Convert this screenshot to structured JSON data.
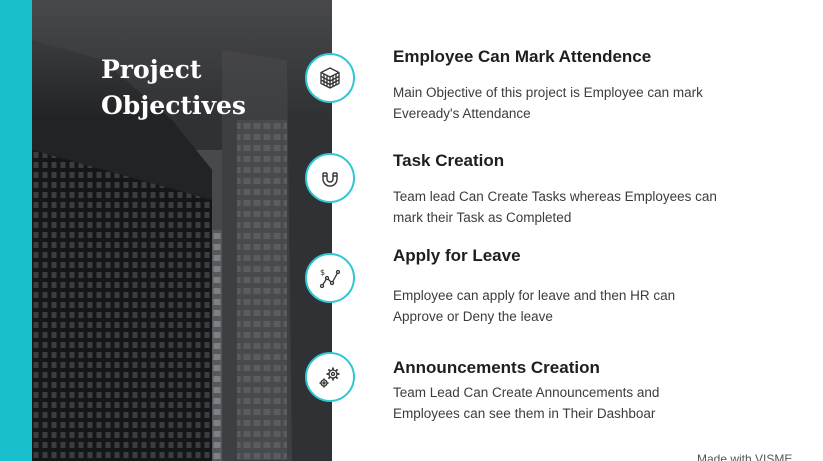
{
  "slide": {
    "title_line1": "Project",
    "title_line2": "Objectives",
    "accent_color": "#19bfcc",
    "watermark": "Made with VISME"
  },
  "objectives": [
    {
      "icon": "cube-grid-icon",
      "title": "Employee Can Mark Attendence",
      "desc_line1": "Main Objective of this project is Employee can mark",
      "desc_line2": "Eveready's Attendance"
    },
    {
      "icon": "magnet-icon",
      "title": "Task Creation",
      "desc_line1": "Team lead Can Create Tasks whereas Employees can",
      "desc_line2": "mark their Task as Completed"
    },
    {
      "icon": "dollar-chart-icon",
      "title": "Apply for Leave",
      "desc_line1": "Employee can apply for leave and then HR can",
      "desc_line2": "Approve or Deny the leave"
    },
    {
      "icon": "gears-icon",
      "title": "Announcements Creation",
      "desc_line1": "Team Lead Can Create Announcements and",
      "desc_line2": "Employees can see them in Their Dashboar"
    }
  ]
}
